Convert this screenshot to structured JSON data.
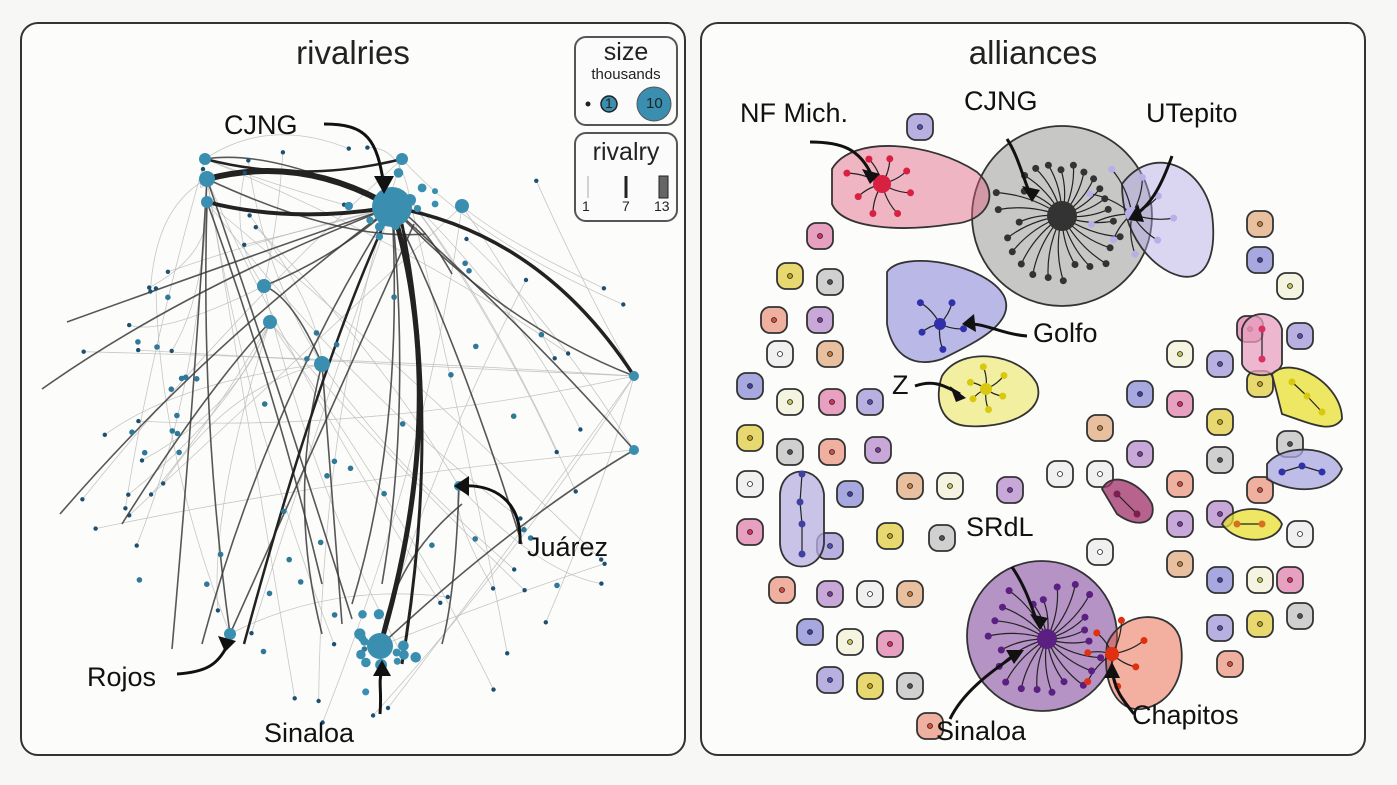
{
  "rivalries": {
    "title": "rivalries",
    "legend_size": {
      "title": "size",
      "subtitle": "thousands",
      "small_value": "1",
      "large_value": "10"
    },
    "legend_rivalry": {
      "title": "rivalry",
      "values": [
        "1",
        "7",
        "13"
      ]
    },
    "labels": {
      "cjng": "CJNG",
      "juarez": "Juárez",
      "rojos": "Rojos",
      "sinaloa": "Sinaloa"
    },
    "node_color": "#3a8fb0",
    "edge_color": "#3a3a3a"
  },
  "alliances": {
    "title": "alliances",
    "labels": {
      "nf_mich": "NF Mich.",
      "cjng": "CJNG",
      "utepito": "UTepito",
      "golfo": "Golfo",
      "z": "Z",
      "srdl": "SRdL",
      "sinaloa": "Sinaloa",
      "chapitos": "Chapitos"
    },
    "group_colors": {
      "nf_mich": "#e0607e",
      "cjng": "#5a5a5a",
      "utepito": "#b2a8e6",
      "golfo": "#6b66cc",
      "z": "#e8e030",
      "sinaloa": "#7a3d99",
      "chapitos": "#e85530"
    }
  }
}
